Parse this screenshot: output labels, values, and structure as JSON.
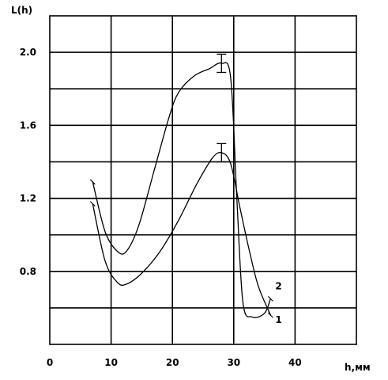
{
  "chart_data": {
    "type": "line",
    "ylabel": "L(h)",
    "xlabel": "h,мм",
    "xlim": [
      0,
      50
    ],
    "ylim": [
      0.4,
      2.2
    ],
    "x_ticks": [
      0,
      10,
      20,
      30,
      40
    ],
    "x_tick_labels": [
      "0",
      "10",
      "20",
      "30",
      "40"
    ],
    "y_ticks": [
      0.8,
      1.2,
      1.6,
      2.0
    ],
    "y_tick_labels": [
      "0.8",
      "1.2",
      "1.6",
      "2.0"
    ],
    "grid": true,
    "series": [
      {
        "name": "1",
        "x": [
          7.0,
          9.0,
          11.0,
          12.5,
          15.0,
          18.0,
          21.0,
          24.0,
          26.5,
          28.0,
          29.5,
          31.0,
          32.5,
          34.0,
          36.0
        ],
        "y": [
          1.17,
          0.86,
          0.74,
          0.73,
          0.79,
          0.91,
          1.08,
          1.28,
          1.42,
          1.45,
          1.39,
          1.15,
          0.92,
          0.72,
          0.56
        ],
        "error_bar": {
          "x": 28.0,
          "y": 1.45,
          "err": 0.05
        }
      },
      {
        "name": "2",
        "x": [
          7.0,
          9.0,
          11.0,
          12.5,
          14.5,
          17.0,
          19.5,
          21.0,
          23.5,
          26.0,
          28.0,
          29.5,
          30.5,
          31.5,
          33.0,
          35.0,
          36.0
        ],
        "y": [
          1.29,
          1.02,
          0.91,
          0.91,
          1.05,
          1.35,
          1.65,
          1.78,
          1.87,
          1.91,
          1.94,
          1.86,
          1.2,
          0.63,
          0.55,
          0.57,
          0.65
        ],
        "error_bar": {
          "x": 28.0,
          "y": 1.94,
          "err": 0.05
        }
      }
    ]
  }
}
